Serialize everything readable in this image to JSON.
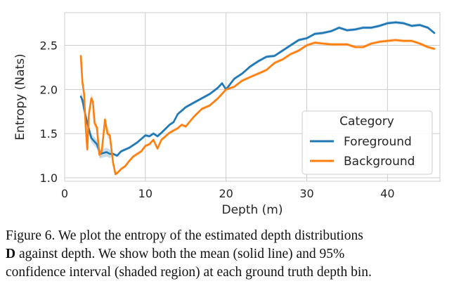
{
  "chart_data": {
    "type": "line",
    "xlabel": "Depth (m)",
    "ylabel": "Entropy (Nats)",
    "xlim": [
      0,
      46.5
    ],
    "ylim": [
      0.96,
      2.87
    ],
    "xticks": [
      "0",
      "10",
      "20",
      "30",
      "40"
    ],
    "yticks": [
      "1.0",
      "1.5",
      "2.0",
      "2.5"
    ],
    "grid": true,
    "legend": {
      "title": "Category",
      "placement": "lower-right"
    },
    "series": [
      {
        "name": "Foreground",
        "color": "#1f77b4",
        "x": [
          2.0,
          2.2,
          2.4,
          2.6,
          2.8,
          3.0,
          3.3,
          3.6,
          4.0,
          4.4,
          4.8,
          5.2,
          5.6,
          6.0,
          6.5,
          7.0,
          8.0,
          9.0,
          10.0,
          10.5,
          11.0,
          11.5,
          12.0,
          13.0,
          13.5,
          14.0,
          15.0,
          16.0,
          17.0,
          18.0,
          19.0,
          19.5,
          20.0,
          21.0,
          22.0,
          23.0,
          24.0,
          25.0,
          26.0,
          27.0,
          28.0,
          29.0,
          30.0,
          31.0,
          32.0,
          33.0,
          34.0,
          35.0,
          36.0,
          37.0,
          38.0,
          39.0,
          40.0,
          41.0,
          42.0,
          43.0,
          44.0,
          45.0,
          45.8
        ],
        "values": [
          1.92,
          1.88,
          1.78,
          1.7,
          1.62,
          1.55,
          1.45,
          1.42,
          1.38,
          1.27,
          1.28,
          1.29,
          1.27,
          1.27,
          1.25,
          1.3,
          1.34,
          1.4,
          1.48,
          1.47,
          1.5,
          1.47,
          1.51,
          1.6,
          1.63,
          1.72,
          1.8,
          1.85,
          1.9,
          1.95,
          2.02,
          2.07,
          2.0,
          2.12,
          2.18,
          2.26,
          2.32,
          2.37,
          2.38,
          2.44,
          2.5,
          2.56,
          2.58,
          2.63,
          2.64,
          2.66,
          2.7,
          2.67,
          2.68,
          2.7,
          2.7,
          2.72,
          2.75,
          2.76,
          2.75,
          2.72,
          2.73,
          2.7,
          2.64
        ]
      },
      {
        "name": "Background",
        "color": "#ff7f0e",
        "x": [
          2.0,
          2.2,
          2.4,
          2.6,
          2.8,
          3.0,
          3.3,
          3.5,
          3.7,
          4.0,
          4.3,
          4.6,
          5.0,
          5.3,
          5.6,
          6.0,
          6.3,
          6.6,
          7.0,
          7.5,
          8.0,
          8.5,
          9.0,
          9.5,
          10.0,
          10.5,
          11.0,
          11.5,
          12.0,
          13.0,
          14.0,
          14.5,
          15.0,
          16.0,
          17.0,
          18.0,
          19.0,
          19.5,
          20.0,
          21.0,
          22.0,
          23.0,
          24.0,
          25.0,
          26.0,
          27.0,
          28.0,
          29.0,
          30.0,
          31.0,
          32.0,
          33.0,
          34.0,
          35.0,
          36.0,
          37.0,
          38.0,
          39.0,
          40.0,
          41.0,
          42.0,
          43.0,
          44.0,
          45.0,
          45.8
        ],
        "values": [
          2.38,
          2.08,
          1.95,
          1.58,
          1.32,
          1.72,
          1.9,
          1.86,
          1.62,
          1.57,
          1.26,
          1.3,
          1.66,
          1.5,
          1.48,
          1.17,
          1.04,
          1.06,
          1.1,
          1.13,
          1.19,
          1.24,
          1.27,
          1.3,
          1.36,
          1.38,
          1.43,
          1.33,
          1.43,
          1.51,
          1.56,
          1.6,
          1.58,
          1.69,
          1.78,
          1.82,
          1.9,
          1.95,
          2.0,
          2.03,
          2.1,
          2.14,
          2.18,
          2.22,
          2.3,
          2.34,
          2.4,
          2.44,
          2.5,
          2.53,
          2.52,
          2.51,
          2.51,
          2.51,
          2.48,
          2.48,
          2.52,
          2.54,
          2.55,
          2.56,
          2.55,
          2.55,
          2.52,
          2.48,
          2.46
        ]
      }
    ]
  },
  "caption": {
    "line1": "Figure 6. We plot the entropy of the estimated depth distributions",
    "line2_bold": "D",
    "line2_rest": " against depth.  We show both the mean (solid line) and 95%",
    "line3": "confidence interval (shaded region) at each ground truth depth bin."
  }
}
